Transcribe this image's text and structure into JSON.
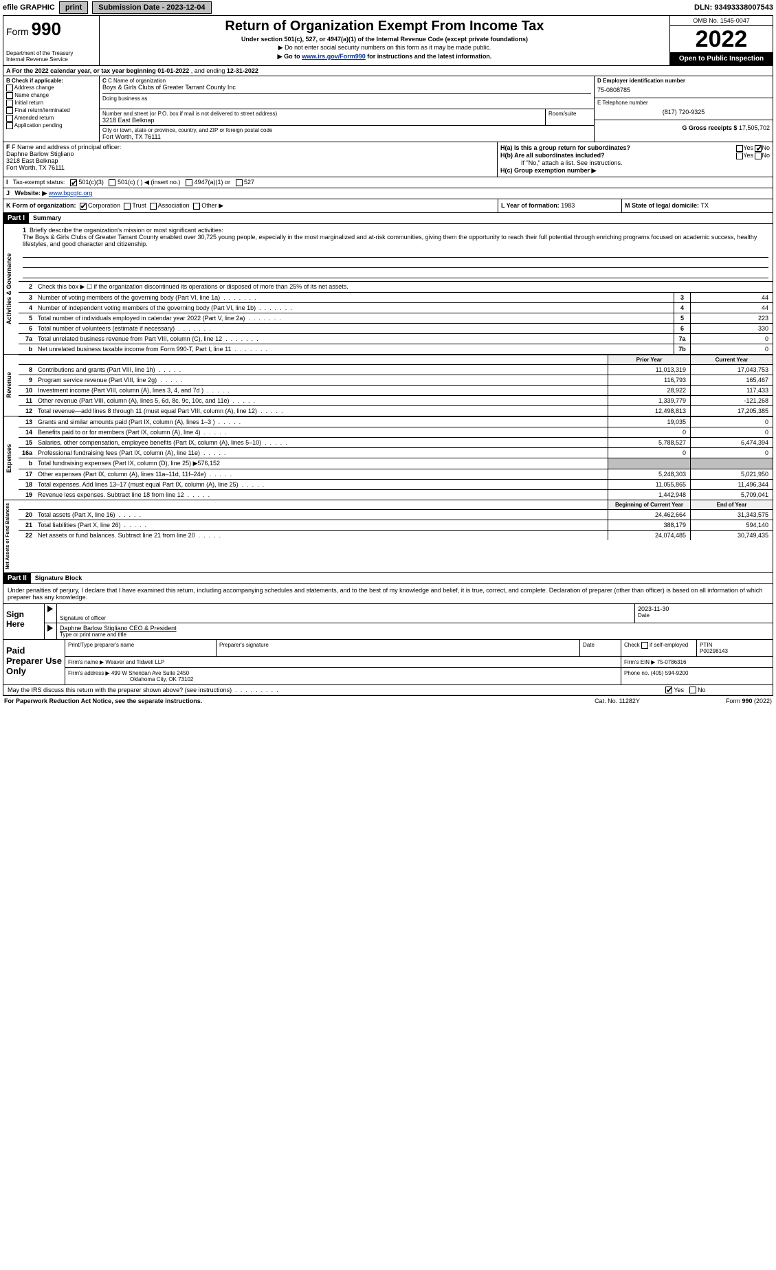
{
  "topbar": {
    "efile_prefix": "efile",
    "efile_suffix": "GRAPHIC",
    "print": "print",
    "sub_label": "Submission Date - 2023-12-04",
    "dln": "DLN: 93493338007543"
  },
  "header": {
    "form_prefix": "Form",
    "form_num": "990",
    "title": "Return of Organization Exempt From Income Tax",
    "subtitle": "Under section 501(c), 527, or 4947(a)(1) of the Internal Revenue Code (except private foundations)",
    "note1": "▶ Do not enter social security numbers on this form as it may be made public.",
    "note2_pre": "▶ Go to ",
    "note2_link": "www.irs.gov/Form990",
    "note2_post": " for instructions and the latest information.",
    "dept1": "Department of the Treasury",
    "dept2": "Internal Revenue Service",
    "omb": "OMB No. 1545-0047",
    "year": "2022",
    "open": "Open to Public Inspection"
  },
  "rowA": {
    "text_pre": "A For the 2022 calendar year, or tax year beginning ",
    "begin": "01-01-2022",
    "mid": "   , and ending ",
    "end": "12-31-2022"
  },
  "secB": {
    "label": "B Check if applicable:",
    "items": [
      "Address change",
      "Name change",
      "Initial return",
      "Final return/terminated",
      "Amended return",
      "Application pending"
    ]
  },
  "secC": {
    "label": "C Name of organization",
    "name": "Boys & Girls Clubs of Greater Tarrant County Inc",
    "dba_label": "Doing business as",
    "street_label": "Number and street (or P.O. box if mail is not delivered to street address)",
    "room_label": "Room/suite",
    "street": "3218 East Belknap",
    "city_label": "City or town, state or province, country, and ZIP or foreign postal code",
    "city": "Fort Worth, TX  76111"
  },
  "secD": {
    "label": "D Employer identification number",
    "ein": "75-0808785",
    "e_label": "E Telephone number",
    "phone": "(817) 720-9325",
    "g_label": "G Gross receipts $",
    "gross": "17,505,702"
  },
  "secF": {
    "label": "F Name and address of principal officer:",
    "name": "Daphne Barlow Stigliano",
    "addr1": "3218 East Belknap",
    "addr2": "Fort Worth, TX  76111",
    "ha": "H(a)  Is this a group return for subordinates?",
    "hb": "H(b)  Are all subordinates included?",
    "hb_note": "If \"No,\" attach a list. See instructions.",
    "hc": "H(c)  Group exemption number ▶"
  },
  "secI": {
    "label": "Tax-exempt status:",
    "opts": [
      "501(c)(3)",
      "501(c) (  ) ◀ (insert no.)",
      "4947(a)(1) or",
      "527"
    ]
  },
  "secJ": {
    "label": "Website: ▶ ",
    "url": "www.bgcgtc.org"
  },
  "secK": {
    "label": "K Form of organization:",
    "corp": "Corporation",
    "trust": "Trust",
    "assoc": "Association",
    "other": "Other ▶",
    "l_label": "L Year of formation: ",
    "l_val": "1983",
    "m_label": "M State of legal domicile: ",
    "m_val": "TX"
  },
  "part1": {
    "label": "Part I",
    "title": "Summary"
  },
  "mission": {
    "num": "1",
    "label": "Briefly describe the organization's mission or most significant activities:",
    "text": "The Boys & Girls Clubs of Greater Tarrant County enabled over 30,725 young people, especially in the most marginalized and at-risk communities, giving them the opportunity to reach their full potential through enriching programs focused on academic success, healthy lifestyles, and good character and citizenship."
  },
  "gov_rows": [
    {
      "n": "2",
      "label": "Check this box ▶ ☐ if the organization discontinued its operations or disposed of more than 25% of its net assets.",
      "box": "",
      "val": ""
    },
    {
      "n": "3",
      "label": "Number of voting members of the governing body (Part VI, line 1a)",
      "box": "3",
      "val": "44"
    },
    {
      "n": "4",
      "label": "Number of independent voting members of the governing body (Part VI, line 1b)",
      "box": "4",
      "val": "44"
    },
    {
      "n": "5",
      "label": "Total number of individuals employed in calendar year 2022 (Part V, line 2a)",
      "box": "5",
      "val": "223"
    },
    {
      "n": "6",
      "label": "Total number of volunteers (estimate if necessary)",
      "box": "6",
      "val": "330"
    },
    {
      "n": "7a",
      "label": "Total unrelated business revenue from Part VIII, column (C), line 12",
      "box": "7a",
      "val": "0"
    },
    {
      "n": "b",
      "label": "Net unrelated business taxable income from Form 990-T, Part I, line 11",
      "box": "7b",
      "val": "0"
    }
  ],
  "col_hdrs": {
    "prior": "Prior Year",
    "current": "Current Year"
  },
  "rev_rows": [
    {
      "n": "8",
      "label": "Contributions and grants (Part VIII, line 1h)",
      "p": "11,013,319",
      "c": "17,043,753"
    },
    {
      "n": "9",
      "label": "Program service revenue (Part VIII, line 2g)",
      "p": "116,793",
      "c": "165,467"
    },
    {
      "n": "10",
      "label": "Investment income (Part VIII, column (A), lines 3, 4, and 7d )",
      "p": "28,922",
      "c": "117,433"
    },
    {
      "n": "11",
      "label": "Other revenue (Part VIII, column (A), lines 5, 6d, 8c, 9c, 10c, and 11e)",
      "p": "1,339,779",
      "c": "-121,268"
    },
    {
      "n": "12",
      "label": "Total revenue—add lines 8 through 11 (must equal Part VIII, column (A), line 12)",
      "p": "12,498,813",
      "c": "17,205,385"
    }
  ],
  "exp_rows": [
    {
      "n": "13",
      "label": "Grants and similar amounts paid (Part IX, column (A), lines 1–3 )",
      "p": "19,035",
      "c": "0"
    },
    {
      "n": "14",
      "label": "Benefits paid to or for members (Part IX, column (A), line 4)",
      "p": "0",
      "c": "0"
    },
    {
      "n": "15",
      "label": "Salaries, other compensation, employee benefits (Part IX, column (A), lines 5–10)",
      "p": "5,788,527",
      "c": "6,474,394"
    },
    {
      "n": "16a",
      "label": "Professional fundraising fees (Part IX, column (A), line 11e)",
      "p": "0",
      "c": "0"
    },
    {
      "n": "b",
      "label": "Total fundraising expenses (Part IX, column (D), line 25) ▶576,152",
      "p": "shade",
      "c": "shade"
    },
    {
      "n": "17",
      "label": "Other expenses (Part IX, column (A), lines 11a–11d, 11f–24e)",
      "p": "5,248,303",
      "c": "5,021,950"
    },
    {
      "n": "18",
      "label": "Total expenses. Add lines 13–17 (must equal Part IX, column (A), line 25)",
      "p": "11,055,865",
      "c": "11,496,344"
    },
    {
      "n": "19",
      "label": "Revenue less expenses. Subtract line 18 from line 12",
      "p": "1,442,948",
      "c": "5,709,041"
    }
  ],
  "net_hdrs": {
    "begin": "Beginning of Current Year",
    "end": "End of Year"
  },
  "net_rows": [
    {
      "n": "20",
      "label": "Total assets (Part X, line 16)",
      "p": "24,462,664",
      "c": "31,343,575"
    },
    {
      "n": "21",
      "label": "Total liabilities (Part X, line 26)",
      "p": "388,179",
      "c": "594,140"
    },
    {
      "n": "22",
      "label": "Net assets or fund balances. Subtract line 21 from line 20",
      "p": "24,074,485",
      "c": "30,749,435"
    }
  ],
  "vtabs": {
    "gov": "Activities & Governance",
    "rev": "Revenue",
    "exp": "Expenses",
    "net": "Net Assets or Fund Balances"
  },
  "part2": {
    "label": "Part II",
    "title": "Signature Block",
    "intro": "Under penalties of perjury, I declare that I have examined this return, including accompanying schedules and statements, and to the best of my knowledge and belief, it is true, correct, and complete. Declaration of preparer (other than officer) is based on all information of which preparer has any knowledge."
  },
  "sign": {
    "label": "Sign Here",
    "sig_label": "Signature of officer",
    "date": "2023-11-30",
    "date_label": "Date",
    "name": "Daphne Barlow Stigliano CEO & President",
    "name_label": "Type or print name and title"
  },
  "paid": {
    "label": "Paid Preparer Use Only",
    "h1": "Print/Type preparer's name",
    "h2": "Preparer's signature",
    "h3": "Date",
    "h4_pre": "Check",
    "h4_post": "if self-employed",
    "h5": "PTIN",
    "ptin": "P00298143",
    "firm_label": "Firm's name    ▶",
    "firm": "Weaver and Tidwell LLP",
    "ein_label": "Firm's EIN ▶",
    "ein": "75-0786316",
    "addr_label": "Firm's address ▶",
    "addr1": "499 W Sheridan Ave Suite 2450",
    "addr2": "Oklahoma City, OK  73102",
    "phone_label": "Phone no.",
    "phone": "(405) 594-9200"
  },
  "may": {
    "text": "May the IRS discuss this return with the preparer shown above? (see instructions)",
    "yes": "Yes",
    "no": "No"
  },
  "footer": {
    "left": "For Paperwork Reduction Act Notice, see the separate instructions.",
    "center": "Cat. No. 11282Y",
    "right_pre": "Form ",
    "right_num": "990",
    "right_post": " (2022)"
  },
  "yn": {
    "yes": "Yes",
    "no": "No"
  }
}
